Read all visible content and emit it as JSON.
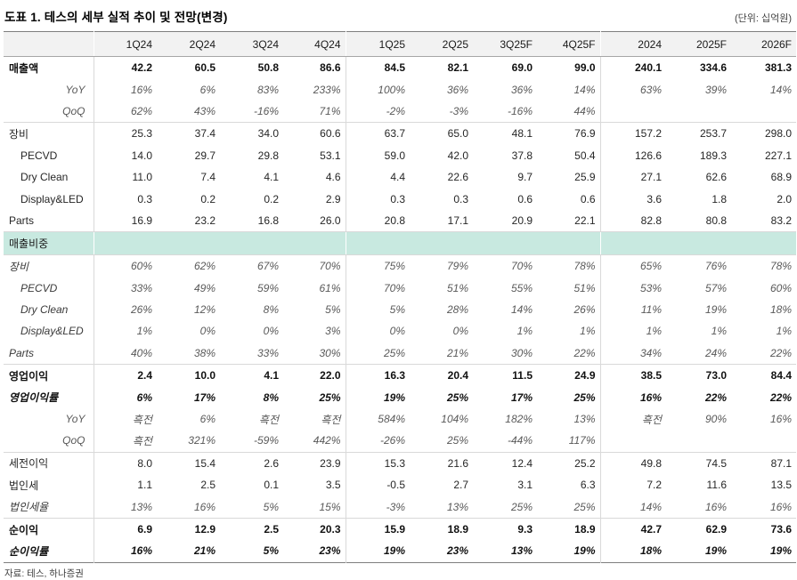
{
  "title": "도표 1. 테스의 세부 실적 추이 및 전망(변경)",
  "unit": "(단위: 십억원)",
  "source": "자료: 테스, 하나증권",
  "colors": {
    "band": "#c8e9e0",
    "header_bg": "#f2f2f2",
    "separator": "#d9d9d9",
    "frame": "#7f7f7f"
  },
  "table": {
    "columns": [
      "1Q24",
      "2Q24",
      "3Q24",
      "4Q24",
      "1Q25",
      "2Q25",
      "3Q25F",
      "4Q25F",
      "2024",
      "2025F",
      "2026F"
    ],
    "rows": [
      {
        "label": "매출액",
        "style": "bold",
        "section": false,
        "indent": 0,
        "values": [
          "42.2",
          "60.5",
          "50.8",
          "86.6",
          "84.5",
          "82.1",
          "69.0",
          "99.0",
          "240.1",
          "334.6",
          "381.3"
        ]
      },
      {
        "label": "YoY",
        "style": "subpct",
        "section": false,
        "indent": 0,
        "values": [
          "16%",
          "6%",
          "83%",
          "233%",
          "100%",
          "36%",
          "36%",
          "14%",
          "63%",
          "39%",
          "14%"
        ]
      },
      {
        "label": "QoQ",
        "style": "subpct",
        "section": false,
        "indent": 0,
        "values": [
          "62%",
          "43%",
          "-16%",
          "71%",
          "-2%",
          "-3%",
          "-16%",
          "44%",
          "",
          "",
          ""
        ]
      },
      {
        "label": "장비",
        "style": "plain",
        "section": true,
        "indent": 0,
        "values": [
          "25.3",
          "37.4",
          "34.0",
          "60.6",
          "63.7",
          "65.0",
          "48.1",
          "76.9",
          "157.2",
          "253.7",
          "298.0"
        ]
      },
      {
        "label": "PECVD",
        "style": "plain",
        "section": false,
        "indent": 1,
        "values": [
          "14.0",
          "29.7",
          "29.8",
          "53.1",
          "59.0",
          "42.0",
          "37.8",
          "50.4",
          "126.6",
          "189.3",
          "227.1"
        ]
      },
      {
        "label": "Dry Clean",
        "style": "plain",
        "section": false,
        "indent": 1,
        "values": [
          "11.0",
          "7.4",
          "4.1",
          "4.6",
          "4.4",
          "22.6",
          "9.7",
          "25.9",
          "27.1",
          "62.6",
          "68.9"
        ]
      },
      {
        "label": "Display&LED",
        "style": "plain",
        "section": false,
        "indent": 1,
        "values": [
          "0.3",
          "0.2",
          "0.2",
          "2.9",
          "0.3",
          "0.3",
          "0.6",
          "0.6",
          "3.6",
          "1.8",
          "2.0"
        ]
      },
      {
        "label": "Parts",
        "style": "plain",
        "section": false,
        "indent": 0,
        "values": [
          "16.9",
          "23.2",
          "16.8",
          "26.0",
          "20.8",
          "17.1",
          "20.9",
          "22.1",
          "82.8",
          "80.8",
          "83.2"
        ]
      },
      {
        "label": "매출비중",
        "style": "band",
        "section": false,
        "indent": 0,
        "values": [
          "",
          "",
          "",
          "",
          "",
          "",
          "",
          "",
          "",
          "",
          ""
        ]
      },
      {
        "label": "장비",
        "style": "italic",
        "section": false,
        "indent": 0,
        "values": [
          "60%",
          "62%",
          "67%",
          "70%",
          "75%",
          "79%",
          "70%",
          "78%",
          "65%",
          "76%",
          "78%"
        ]
      },
      {
        "label": "PECVD",
        "style": "italic",
        "section": false,
        "indent": 1,
        "values": [
          "33%",
          "49%",
          "59%",
          "61%",
          "70%",
          "51%",
          "55%",
          "51%",
          "53%",
          "57%",
          "60%"
        ]
      },
      {
        "label": "Dry Clean",
        "style": "italic",
        "section": false,
        "indent": 1,
        "values": [
          "26%",
          "12%",
          "8%",
          "5%",
          "5%",
          "28%",
          "14%",
          "26%",
          "11%",
          "19%",
          "18%"
        ]
      },
      {
        "label": "Display&LED",
        "style": "italic",
        "section": false,
        "indent": 1,
        "values": [
          "1%",
          "0%",
          "0%",
          "3%",
          "0%",
          "0%",
          "1%",
          "1%",
          "1%",
          "1%",
          "1%"
        ]
      },
      {
        "label": "Parts",
        "style": "italic",
        "section": false,
        "indent": 0,
        "values": [
          "40%",
          "38%",
          "33%",
          "30%",
          "25%",
          "21%",
          "30%",
          "22%",
          "34%",
          "24%",
          "22%"
        ]
      },
      {
        "label": "영업이익",
        "style": "bold",
        "section": true,
        "indent": 0,
        "values": [
          "2.4",
          "10.0",
          "4.1",
          "22.0",
          "16.3",
          "20.4",
          "11.5",
          "24.9",
          "38.5",
          "73.0",
          "84.4"
        ]
      },
      {
        "label": "영업이익률",
        "style": "bolditalic",
        "section": false,
        "indent": 0,
        "values": [
          "6%",
          "17%",
          "8%",
          "25%",
          "19%",
          "25%",
          "17%",
          "25%",
          "16%",
          "22%",
          "22%"
        ]
      },
      {
        "label": "YoY",
        "style": "subpct",
        "section": false,
        "indent": 0,
        "values": [
          "흑전",
          "6%",
          "흑전",
          "흑전",
          "584%",
          "104%",
          "182%",
          "13%",
          "흑전",
          "90%",
          "16%"
        ]
      },
      {
        "label": "QoQ",
        "style": "subpct",
        "section": false,
        "indent": 0,
        "values": [
          "흑전",
          "321%",
          "-59%",
          "442%",
          "-26%",
          "25%",
          "-44%",
          "117%",
          "",
          "",
          ""
        ]
      },
      {
        "label": "세전이익",
        "style": "plain",
        "section": true,
        "indent": 0,
        "values": [
          "8.0",
          "15.4",
          "2.6",
          "23.9",
          "15.3",
          "21.6",
          "12.4",
          "25.2",
          "49.8",
          "74.5",
          "87.1"
        ]
      },
      {
        "label": "법인세",
        "style": "plain",
        "section": false,
        "indent": 0,
        "values": [
          "1.1",
          "2.5",
          "0.1",
          "3.5",
          "-0.5",
          "2.7",
          "3.1",
          "6.3",
          "7.2",
          "11.6",
          "13.5"
        ]
      },
      {
        "label": "법인세율",
        "style": "italic",
        "section": false,
        "indent": 0,
        "values": [
          "13%",
          "16%",
          "5%",
          "15%",
          "-3%",
          "13%",
          "25%",
          "25%",
          "14%",
          "16%",
          "16%"
        ]
      },
      {
        "label": "순이익",
        "style": "bold",
        "section": true,
        "indent": 0,
        "values": [
          "6.9",
          "12.9",
          "2.5",
          "20.3",
          "15.9",
          "18.9",
          "9.3",
          "18.9",
          "42.7",
          "62.9",
          "73.6"
        ]
      },
      {
        "label": "순이익률",
        "style": "bolditalic",
        "section": false,
        "indent": 0,
        "values": [
          "16%",
          "21%",
          "5%",
          "23%",
          "19%",
          "23%",
          "13%",
          "19%",
          "18%",
          "19%",
          "19%"
        ]
      }
    ]
  }
}
